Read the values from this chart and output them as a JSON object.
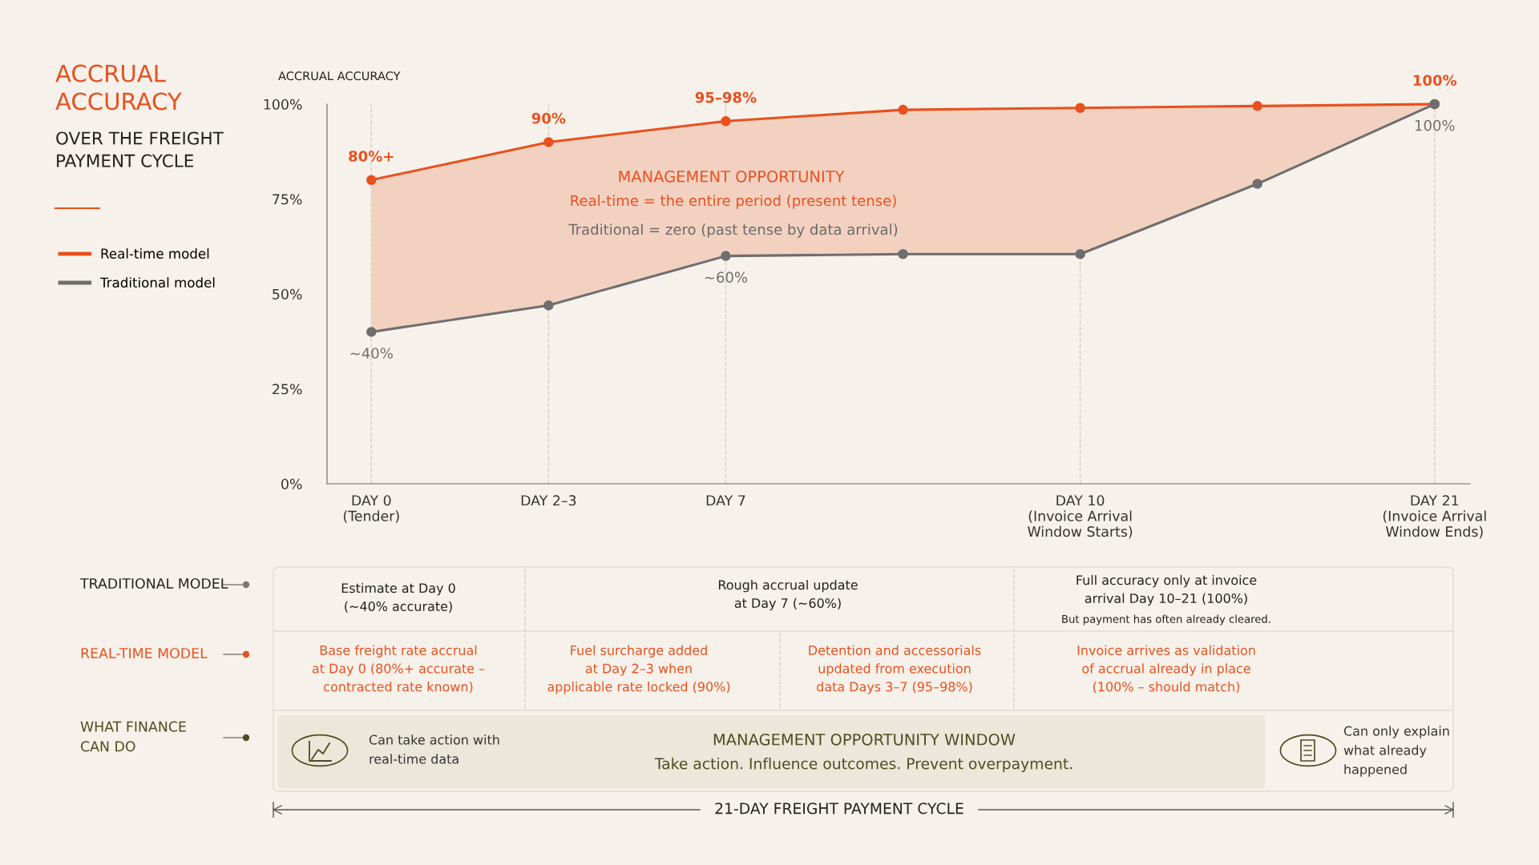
{
  "chart_data": {
    "type": "line",
    "title": "ACCRUAL\nACCURACY",
    "subtitle": "OVER THE FREIGHT\nPAYMENT CYCLE",
    "ylabel": "ACCRUAL ACCURACY",
    "categories": [
      "DAY 0\n(Tender)",
      "DAY 2–3",
      "DAY 7",
      null,
      "DAY 10\n(Invoice Arrival\nWindow Starts)",
      null,
      "DAY 21\n(Invoice Arrival\nWindow Ends)"
    ],
    "series": [
      {
        "name": "Real-time model",
        "color": "#e8501e",
        "values": [
          80,
          90,
          95.5,
          98.5,
          99,
          99.5,
          100
        ],
        "lower": [
          40,
          47,
          60,
          60.5,
          60.5,
          79,
          100
        ],
        "upper": [
          80,
          90,
          95.5,
          98.5,
          99,
          99.5,
          100
        ],
        "value_labels": [
          "80%+",
          "90%",
          "95–98%",
          null,
          null,
          null,
          "100%"
        ]
      },
      {
        "name": "Traditional model",
        "color": "#6e6e6e",
        "values": [
          40,
          47,
          60,
          60.5,
          60.5,
          79,
          100
        ],
        "value_labels": [
          "~40%",
          null,
          "~60%",
          null,
          null,
          null,
          "100%"
        ]
      }
    ],
    "ylim": [
      0,
      100
    ],
    "yticks": [
      {
        "value": 0,
        "label": "0%"
      },
      {
        "value": 25,
        "label": "25%"
      },
      {
        "value": 50,
        "label": "50%"
      },
      {
        "value": 75,
        "label": "75%"
      },
      {
        "value": 100,
        "label": "100%"
      }
    ],
    "grid": "x",
    "legend": "left",
    "marker": "circle",
    "line_style": "solid",
    "annotations": [
      "MANAGEMENT OPPORTUNITY",
      "Real-time = the entire period (present tense)",
      "Traditional = zero (past tense by data arrival)",
      "TRADITIONAL MODEL",
      "REAL-TIME MODEL",
      "WHAT FINANCE\nCAN DO",
      "Estimate at Day 0\n(~40% accurate)",
      "Rough accrual update\nat Day 7 (~60%)",
      "Full accuracy only at invoice\narrival Day 10–21 (100%)",
      "But payment has often already cleared.",
      "Base freight rate accrual\nat Day 0 (80%+ accurate –\ncontracted rate known)",
      "Fuel surcharge added\nat Day 2–3 when\napplicable rate locked (90%)",
      "Detention and accessorials\nupdated from execution\ndata Days 3–7 (95–98%)",
      "Invoice arrives as validation\nof accrual already in place\n(100% – should match)",
      "Can take action with\nreal-time data",
      "MANAGEMENT OPPORTUNITY WINDOW",
      "Take action. Influence outcomes. Prevent overpayment.",
      "Can only explain\nwhat already\nhappened",
      "21-DAY FREIGHT PAYMENT CYCLE"
    ]
  }
}
